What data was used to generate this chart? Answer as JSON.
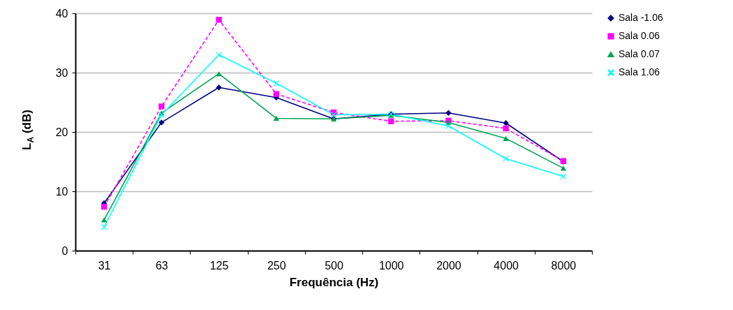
{
  "chart_data": {
    "type": "line",
    "xlabel": "Frequência (Hz)",
    "ylabel": "L$_{A}$ (dB)",
    "categories": [
      "31",
      "63",
      "125",
      "250",
      "500",
      "1000",
      "2000",
      "4000",
      "8000"
    ],
    "series": [
      {
        "name": "Sala -1.06",
        "color": "#000080",
        "marker": "diamond",
        "line_style": "solid",
        "values": [
          8.0,
          21.6,
          27.5,
          25.8,
          22.2,
          23.0,
          23.2,
          21.5,
          15.0
        ]
      },
      {
        "name": "Sala 0.06",
        "color": "#ff00ff",
        "marker": "square",
        "line_style": "dashed",
        "values": [
          7.4,
          24.3,
          38.9,
          26.4,
          23.3,
          21.8,
          21.9,
          20.6,
          15.1
        ]
      },
      {
        "name": "Sala 0.07",
        "color": "#00a651",
        "marker": "triangle",
        "line_style": "solid",
        "values": [
          5.2,
          23.2,
          29.8,
          22.3,
          22.2,
          22.8,
          21.6,
          18.9,
          13.9
        ]
      },
      {
        "name": "Sala 1.06",
        "color": "#00ffff",
        "marker": "cross",
        "line_style": "solid",
        "values": [
          4.0,
          22.9,
          33.0,
          28.2,
          22.9,
          23.0,
          21.0,
          15.5,
          12.5
        ]
      }
    ],
    "ylim": [
      0,
      40
    ],
    "yticks": [
      0,
      10,
      20,
      30,
      40
    ],
    "grid": "y",
    "legend": "right"
  }
}
